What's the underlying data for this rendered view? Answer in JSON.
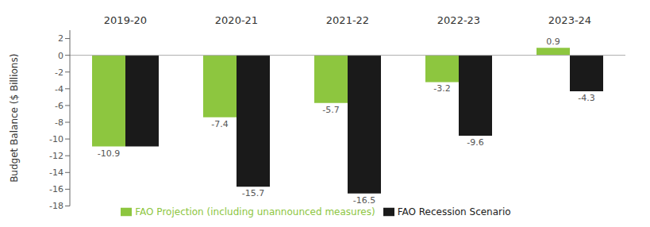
{
  "chart_data": {
    "type": "bar",
    "categories": [
      "2019-20",
      "2020-21",
      "2021-22",
      "2022-23",
      "2023-24"
    ],
    "series": [
      {
        "name": "FAO Projection (including unannounced measures)",
        "color": "#8dc63f",
        "values": [
          -10.9,
          -7.4,
          -5.7,
          -3.2,
          0.9
        ]
      },
      {
        "name": "FAO Recession Scenario",
        "color": "#1a1a1a",
        "values": [
          -10.9,
          -15.7,
          -16.5,
          -9.6,
          -4.3
        ],
        "value_labels": [
          null,
          "-15.7",
          "-16.5",
          "-9.6",
          "-4.3"
        ]
      }
    ],
    "y_label": "Budget Balance ($ Billions)",
    "ylim": [
      -18,
      3
    ],
    "yticks": [
      2,
      0,
      -2,
      -4,
      -6,
      -8,
      -10,
      -12,
      -14,
      -16,
      -18
    ],
    "data_labels": true,
    "grid": false,
    "legend": "bottom"
  }
}
